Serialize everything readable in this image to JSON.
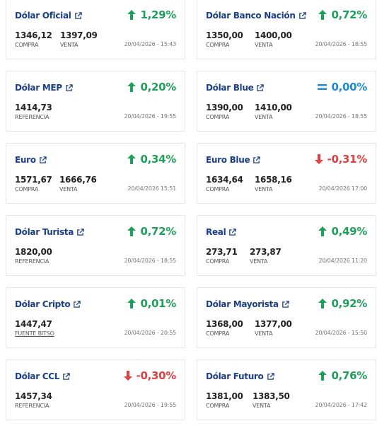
{
  "colors": {
    "up": "#1fa05a",
    "down": "#e04040",
    "equal": "#1c8ad8",
    "title": "#1b3f86"
  },
  "cards": [
    {
      "title": "Dólar Oficial",
      "variation": "1,29%",
      "trend": "up",
      "icon": "arrow-up-icon",
      "values": [
        {
          "value": "1346,12",
          "label": "COMPRA"
        },
        {
          "value": "1397,09",
          "label": "VENTA"
        }
      ],
      "date": "20/04/2026 - 15:43"
    },
    {
      "title": "Dólar Banco Nación",
      "variation": "0,72%",
      "trend": "up",
      "icon": "arrow-up-icon",
      "values": [
        {
          "value": "1350,00",
          "label": "COMPRA"
        },
        {
          "value": "1400,00",
          "label": "VENTA"
        }
      ],
      "date": "20/04/2026 - 18:55"
    },
    {
      "title": "Dólar MEP",
      "variation": "0,20%",
      "trend": "up",
      "icon": "arrow-up-icon",
      "values": [
        {
          "value": "1414,73",
          "label": "REFERENCIA"
        }
      ],
      "date": "20/04/2026 - 19:55"
    },
    {
      "title": "Dólar Blue",
      "variation": "0,00%",
      "trend": "eq",
      "icon": "equals-icon",
      "values": [
        {
          "value": "1390,00",
          "label": "COMPRA"
        },
        {
          "value": "1410,00",
          "label": "VENTA"
        }
      ],
      "date": "20/04/2026 - 18:55"
    },
    {
      "title": "Euro",
      "variation": "0,34%",
      "trend": "up",
      "icon": "arrow-up-icon",
      "values": [
        {
          "value": "1571,67",
          "label": "COMPRA"
        },
        {
          "value": "1666,76",
          "label": "VENTA"
        }
      ],
      "date": "20/04/2026 15:51"
    },
    {
      "title": "Euro Blue",
      "variation": "-0,31%",
      "trend": "down",
      "icon": "arrow-down-icon",
      "values": [
        {
          "value": "1634,64",
          "label": "COMPRA"
        },
        {
          "value": "1658,16",
          "label": "VENTA"
        }
      ],
      "date": "20/04/2026 17:00"
    },
    {
      "title": "Dólar Turista",
      "variation": "0,72%",
      "trend": "up",
      "icon": "arrow-up-icon",
      "values": [
        {
          "value": "1820,00",
          "label": "REFERENCIA"
        }
      ],
      "date": "20/04/2026 - 18:55"
    },
    {
      "title": "Real",
      "variation": "0,49%",
      "trend": "up",
      "icon": "arrow-up-icon",
      "values": [
        {
          "value": "273,71",
          "label": "COMPRA"
        },
        {
          "value": "273,87",
          "label": "VENTA"
        }
      ],
      "date": "20/04/2026 11:20"
    },
    {
      "title": "Dólar Cripto",
      "variation": "0,01%",
      "trend": "up",
      "icon": "arrow-up-icon",
      "values": [
        {
          "value": "1447,47",
          "label": "FUENTE BITSO"
        }
      ],
      "date": "20/04/2026 - 20:55"
    },
    {
      "title": "Dólar Mayorista",
      "variation": "0,92%",
      "trend": "up",
      "icon": "arrow-up-icon",
      "values": [
        {
          "value": "1368,00",
          "label": "COMPRA"
        },
        {
          "value": "1377,00",
          "label": "VENTA"
        }
      ],
      "date": "20/04/2026 - 15:50"
    },
    {
      "title": "Dólar CCL",
      "variation": "-0,30%",
      "trend": "down",
      "icon": "arrow-down-icon",
      "values": [
        {
          "value": "1457,34",
          "label": "REFERENCIA"
        }
      ],
      "date": "20/04/2026 - 19:55"
    },
    {
      "title": "Dólar Futuro",
      "variation": "0,76%",
      "trend": "up",
      "icon": "arrow-up-icon",
      "values": [
        {
          "value": "1381,00",
          "label": "COMPRA"
        },
        {
          "value": "1383,50",
          "label": "VENTA"
        }
      ],
      "date": "20/04/2026 - 17:42"
    }
  ]
}
